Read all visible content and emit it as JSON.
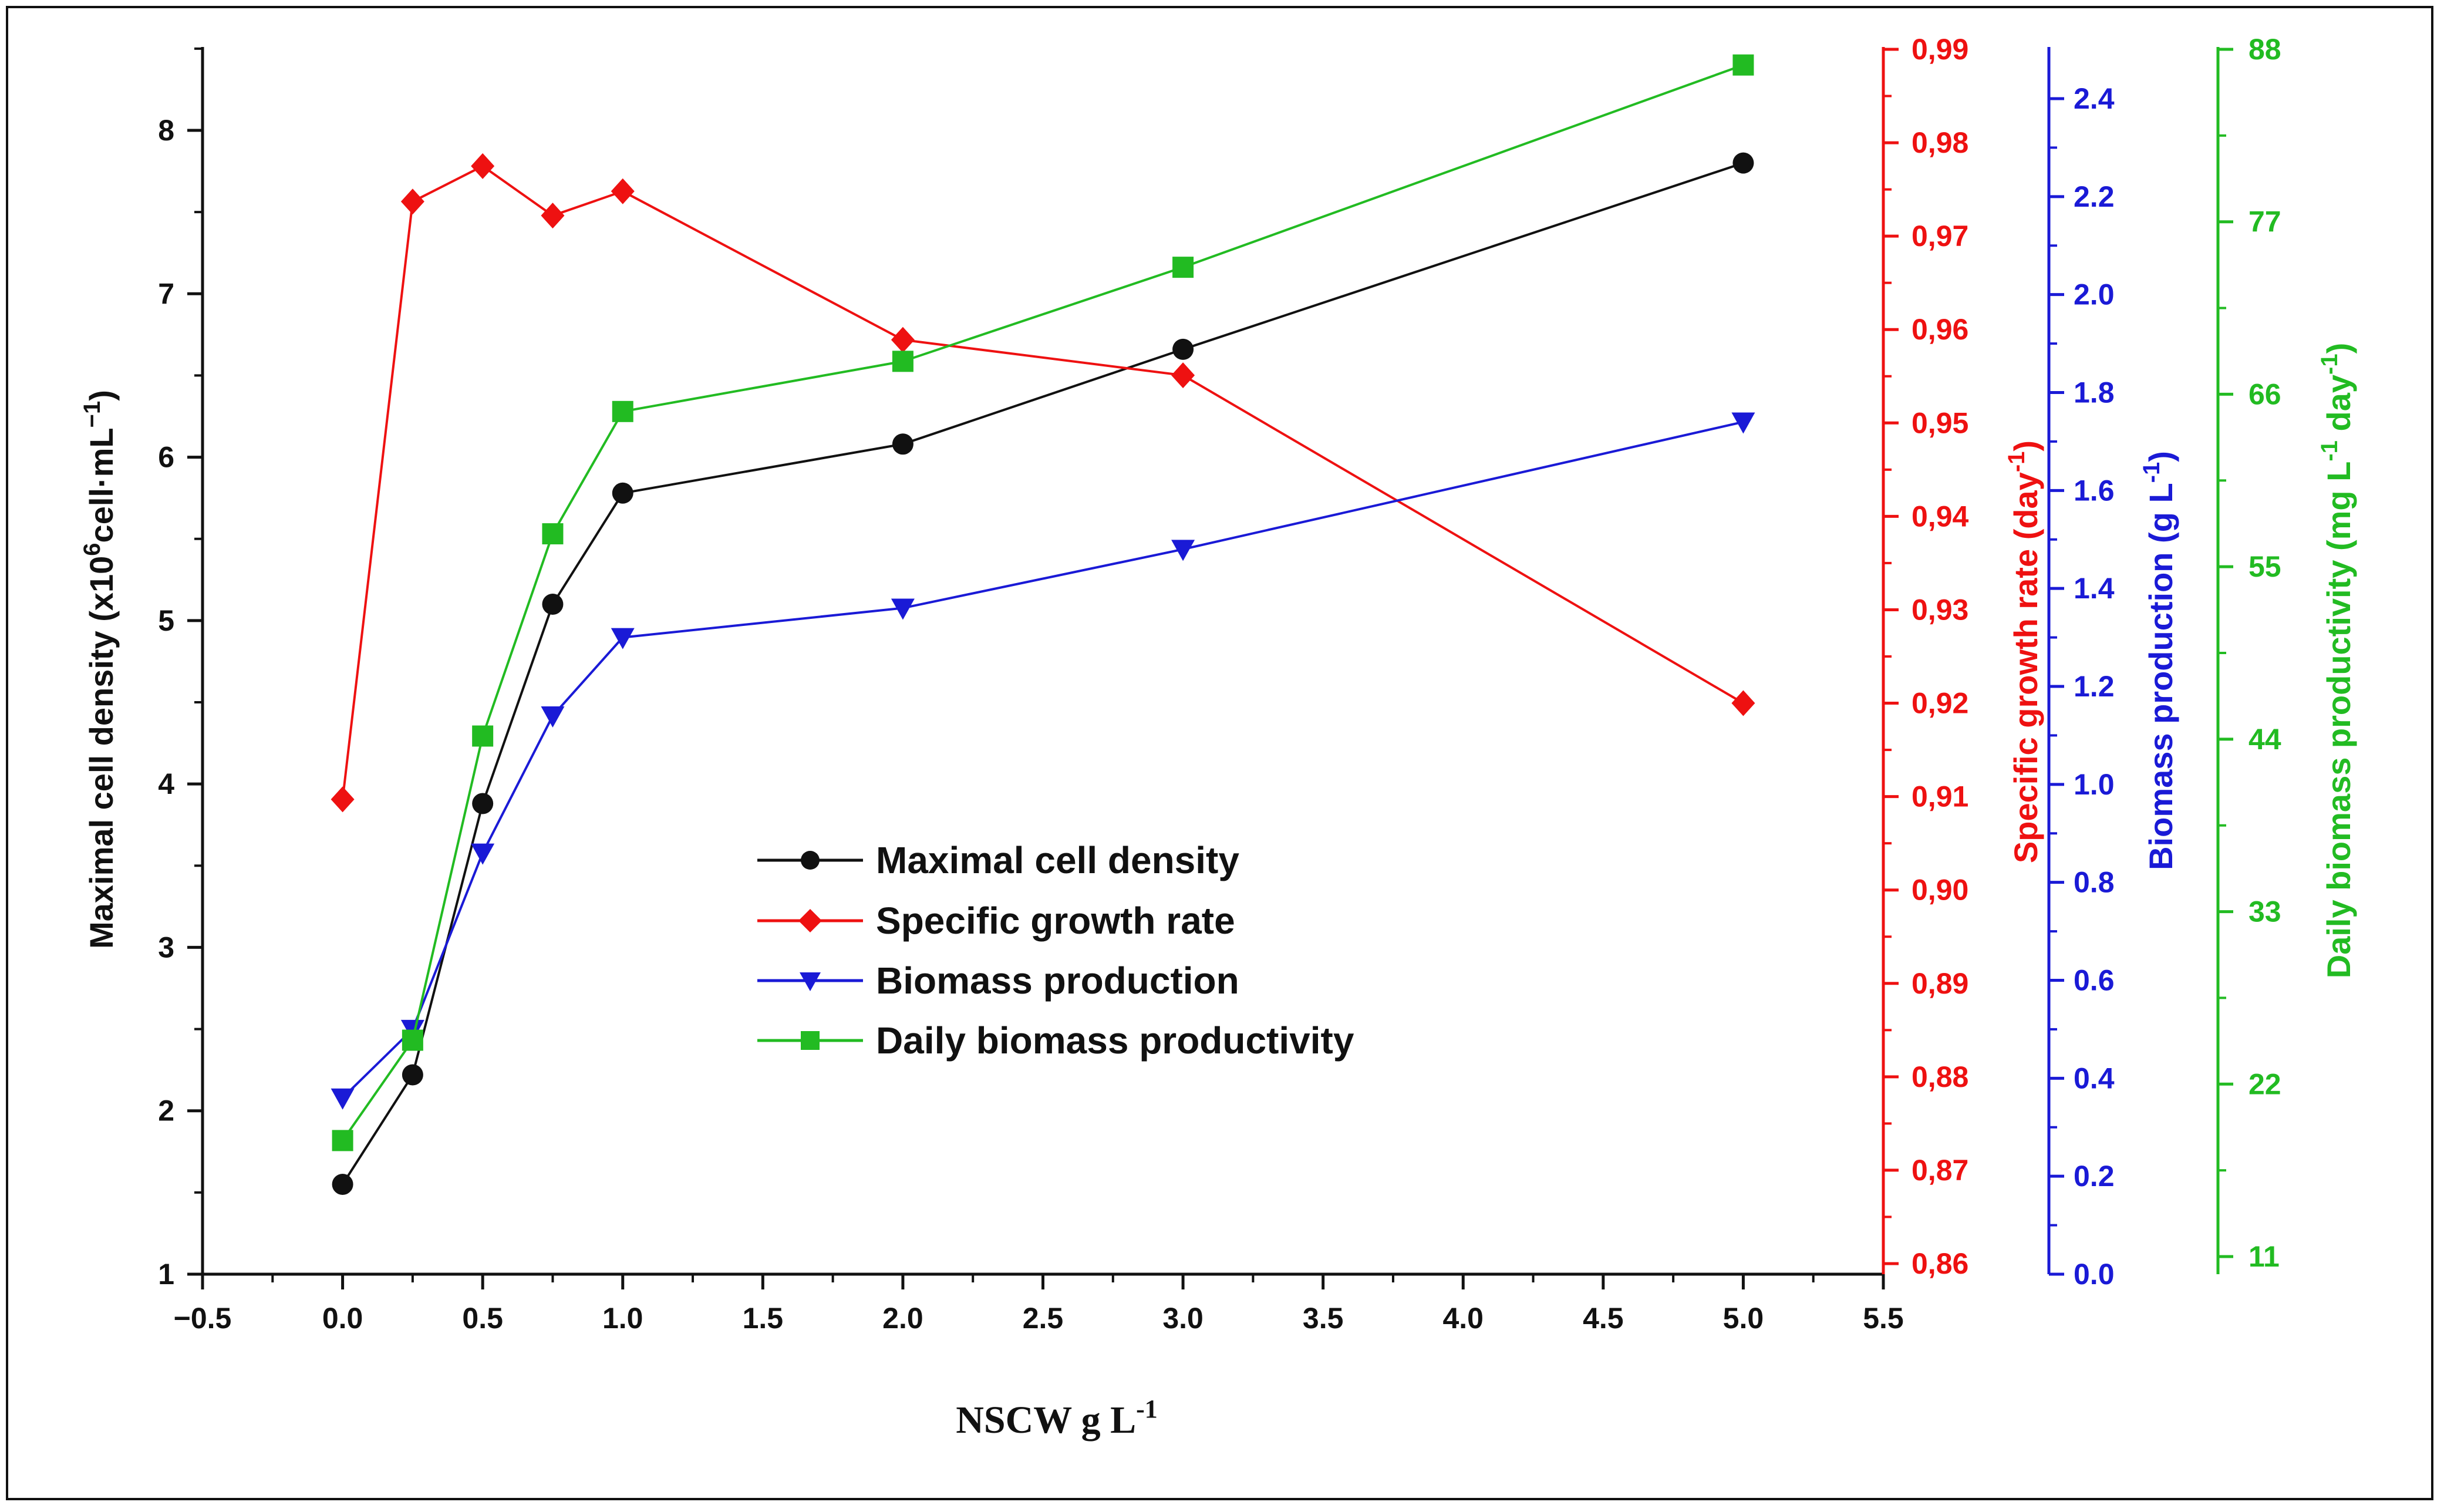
{
  "chart_data": {
    "type": "line",
    "xlabel_main": "NSCW g L",
    "xlabel_sup": "-1",
    "x": [
      0.0,
      0.25,
      0.5,
      0.75,
      1.0,
      2.0,
      3.0,
      5.0
    ],
    "xlim": [
      -0.5,
      5.5
    ],
    "xticks": [
      "−0.5",
      "0.0",
      "0.5",
      "1.0",
      "1.5",
      "2.0",
      "2.5",
      "3.0",
      "3.5",
      "4.0",
      "4.5",
      "5.0",
      "5.5"
    ],
    "axes": {
      "left": {
        "title_pre": "Maximal cell density (x10",
        "title_sup1": "6",
        "title_mid": "cell·mL",
        "title_sup2": "−1",
        "title_post": ")",
        "ylim": [
          1,
          8.5
        ],
        "ticks": [
          "1",
          "2",
          "3",
          "4",
          "5",
          "6",
          "7",
          "8"
        ],
        "color": "#111111"
      },
      "right1": {
        "title_pre": "Specific growth rate (day",
        "title_sup": "-1",
        "title_post": ")",
        "ylim": [
          0.86,
          0.99
        ],
        "ticks": [
          "0,86",
          "0,87",
          "0,88",
          "0,89",
          "0,90",
          "0,91",
          "0,92",
          "0,93",
          "0,94",
          "0,95",
          "0,96",
          "0,97",
          "0,98",
          "0,99"
        ],
        "color": "#ee1111"
      },
      "right2": {
        "title_pre": "Biomass production (g L",
        "title_sup": "-1",
        "title_post": ")",
        "ylim": [
          0.0,
          2.5
        ],
        "ticks": [
          "0.0",
          "0.2",
          "0.4",
          "0.6",
          "0.8",
          "1.0",
          "1.2",
          "1.4",
          "1.6",
          "1.8",
          "2.0",
          "2.2",
          "2.4"
        ],
        "color": "#1a1ad6"
      },
      "right3": {
        "title_pre": "Daily biomass productivity (mg L",
        "title_sup1": "-1",
        "title_mid": " day",
        "title_sup2": "-1",
        "title_post": ")",
        "ylim": [
          10,
          88
        ],
        "ticks": [
          "11",
          "22",
          "33",
          "44",
          "55",
          "66",
          "77",
          "88"
        ],
        "color": "#22bb22"
      }
    },
    "series": [
      {
        "name": "Maximal cell density",
        "axis": "left",
        "color": "#111111",
        "marker": "circle",
        "values": [
          1.55,
          2.22,
          3.88,
          5.1,
          5.78,
          6.08,
          6.66,
          7.8
        ]
      },
      {
        "name": "Specific growth rate",
        "axis": "right1",
        "color": "#ee1111",
        "marker": "diamond",
        "values": [
          0.9097,
          0.9737,
          0.9775,
          0.9722,
          0.9748,
          0.9589,
          0.9551,
          0.92
        ]
      },
      {
        "name": "Biomass production",
        "axis": "right2",
        "color": "#1a1ad6",
        "marker": "triangle-down",
        "values": [
          0.36,
          0.5,
          0.86,
          1.14,
          1.3,
          1.36,
          1.48,
          1.74
        ]
      },
      {
        "name": "Daily biomass productivity",
        "axis": "right3",
        "color": "#22bb22",
        "marker": "square",
        "values": [
          18.4,
          24.8,
          44.2,
          57.1,
          64.9,
          68.1,
          74.1,
          87.0
        ]
      }
    ]
  }
}
